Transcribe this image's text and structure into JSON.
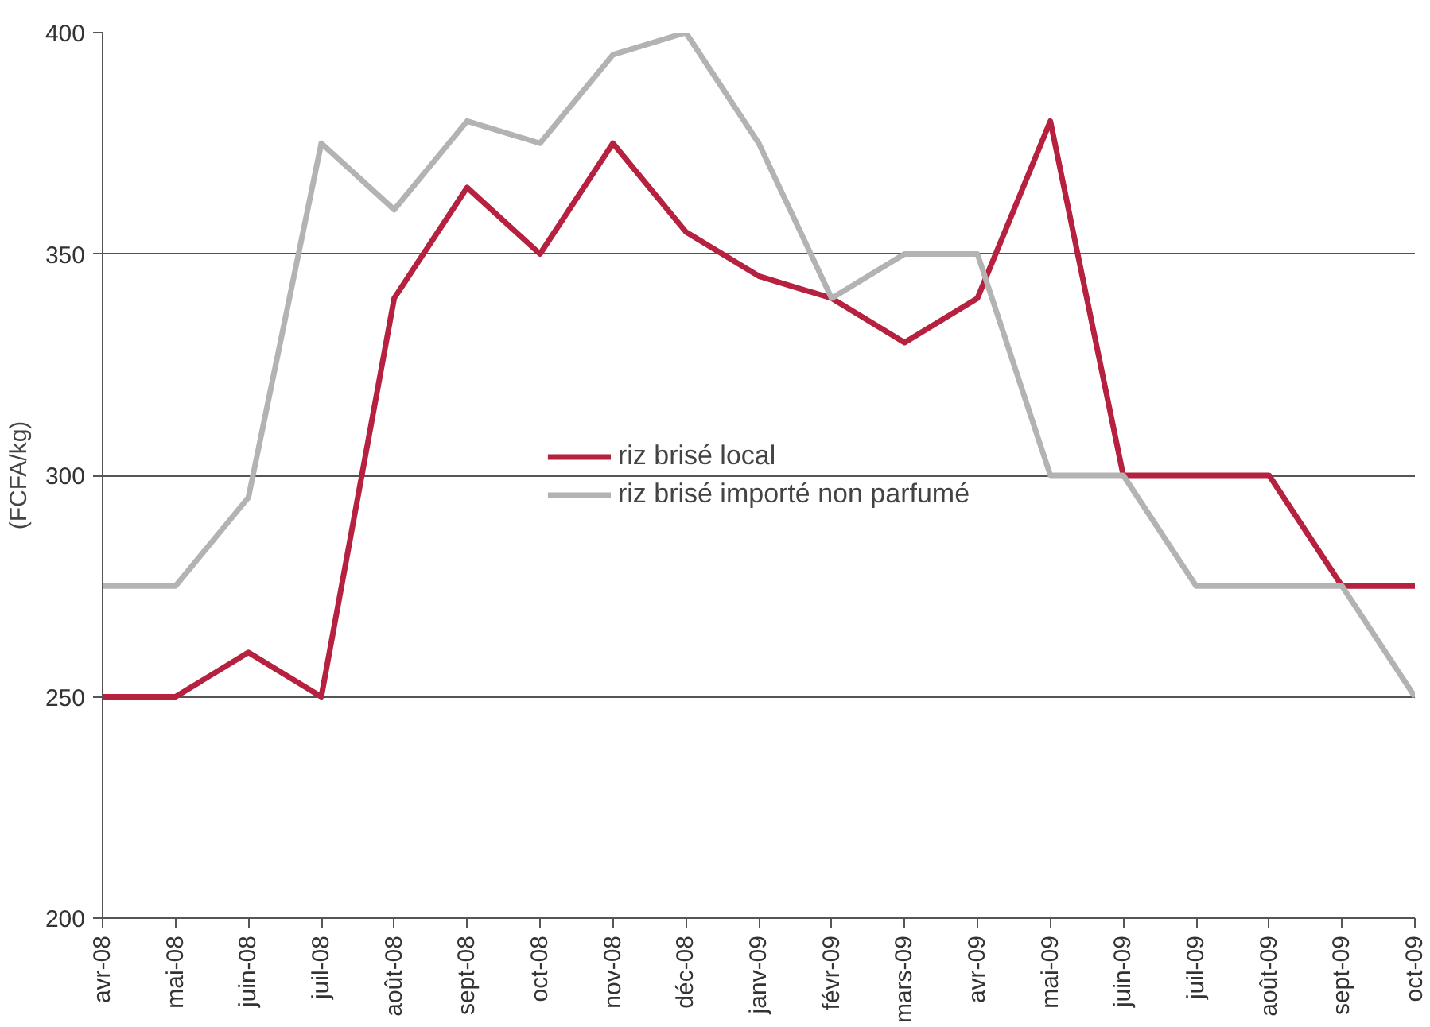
{
  "chart_data": {
    "type": "line",
    "ylabel": "(FCFA/kg)",
    "categories": [
      "avr-08",
      "mai-08",
      "juin-08",
      "juil-08",
      "août-08",
      "sept-08",
      "oct-08",
      "nov-08",
      "déc-08",
      "janv-09",
      "févr-09",
      "mars-09",
      "avr-09",
      "mai-09",
      "juin-09",
      "juil-09",
      "août-09",
      "sept-09",
      "oct-09"
    ],
    "series": [
      {
        "name": "riz brisé local",
        "color": "#b5213f",
        "values": [
          250,
          250,
          260,
          250,
          340,
          365,
          350,
          375,
          355,
          345,
          340,
          330,
          340,
          380,
          300,
          300,
          300,
          275,
          275
        ]
      },
      {
        "name": "riz brisé importé non parfumé",
        "color": "#b3b3b3",
        "values": [
          275,
          275,
          295,
          375,
          360,
          380,
          375,
          395,
          400,
          375,
          340,
          350,
          350,
          300,
          300,
          275,
          275,
          275,
          250
        ]
      }
    ],
    "ylim": [
      200,
      400
    ],
    "yticks": [
      200,
      250,
      300,
      350,
      400
    ],
    "grid": "y",
    "legend": "center",
    "marker": "none",
    "line_style": "solid"
  }
}
